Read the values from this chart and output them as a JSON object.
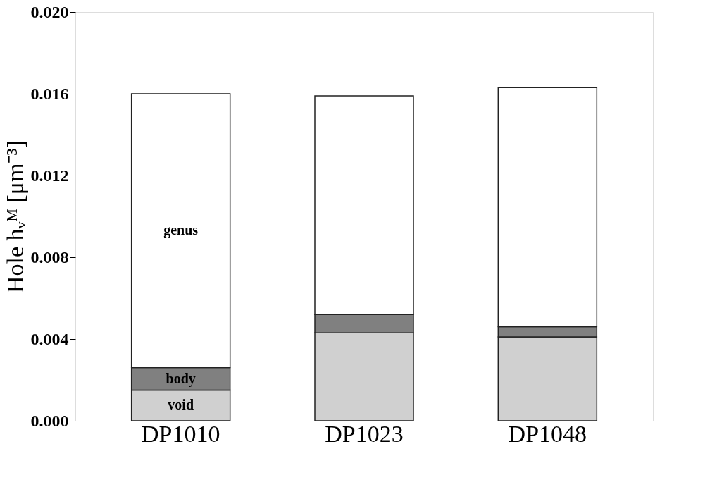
{
  "chart_data": {
    "type": "bar",
    "stacked": true,
    "ylabel": "Hole hᵥᴹ [μm⁻³]",
    "categories": [
      "DP1010",
      "DP1023",
      "DP1048"
    ],
    "series": [
      {
        "name": "void",
        "color": "#d0d0d0",
        "values": [
          0.0015,
          0.0043,
          0.0041
        ]
      },
      {
        "name": "body",
        "color": "#808080",
        "values": [
          0.0011,
          0.0009,
          0.0005
        ]
      },
      {
        "name": "genus",
        "color": "#ffffff",
        "values": [
          0.0134,
          0.0107,
          0.0117
        ]
      }
    ],
    "ylim": [
      0,
      0.02
    ],
    "yticks": [
      {
        "value": 0,
        "label": "0.000"
      },
      {
        "value": 0.004,
        "label": "0.004"
      },
      {
        "value": 0.008,
        "label": "0.008"
      },
      {
        "value": 0.012,
        "label": "0.012"
      },
      {
        "value": 0.016,
        "label": "0.016"
      },
      {
        "value": 0.02,
        "label": "0.020"
      }
    ],
    "grid": false,
    "legend": false
  }
}
